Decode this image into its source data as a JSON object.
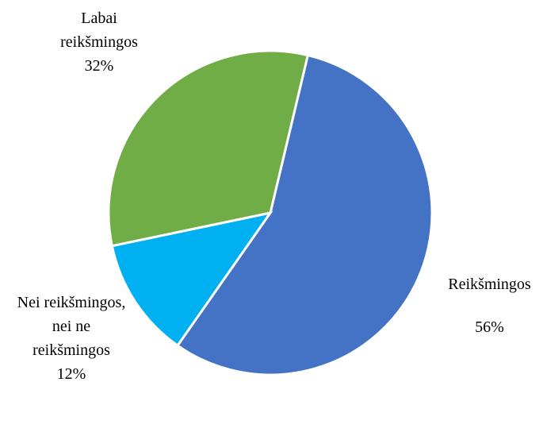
{
  "chart_data": {
    "type": "pie",
    "categories": [
      "Reikšmingos",
      "Nei reikšmingos, nei ne reikšmingos",
      "Labai reikšmingos"
    ],
    "values": [
      56,
      12,
      32
    ],
    "value_labels": [
      "56%",
      "12%",
      "32%"
    ],
    "colors": [
      "#4472c4",
      "#00b0f0",
      "#70ad47"
    ]
  }
}
